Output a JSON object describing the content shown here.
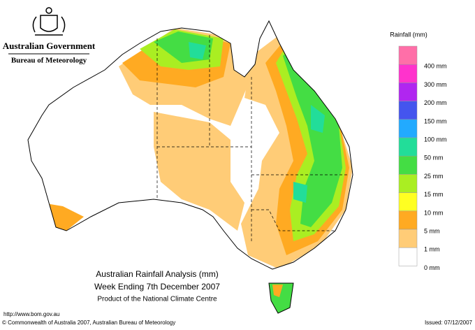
{
  "header": {
    "government": "Australian Government",
    "bureau": "Bureau of Meteorology"
  },
  "legend": {
    "title": "Rainfall (mm)",
    "labels": [
      "400 mm",
      "300 mm",
      "200 mm",
      "150 mm",
      "100 mm",
      "50 mm",
      "25 mm",
      "15 mm",
      "10 mm",
      "5 mm",
      "1 mm",
      "0 mm"
    ]
  },
  "map_title": {
    "line1": "Australian Rainfall Analysis (mm)",
    "line2": "Week Ending 7th December 2007",
    "line3": "Product of the National Climate Centre"
  },
  "footer": {
    "url": "http://www.bom.gov.au",
    "copyright": "© Commonwealth of Australia 2007, Australian Bureau of Meteorology",
    "issued": "Issued: 07/12/2007"
  }
}
